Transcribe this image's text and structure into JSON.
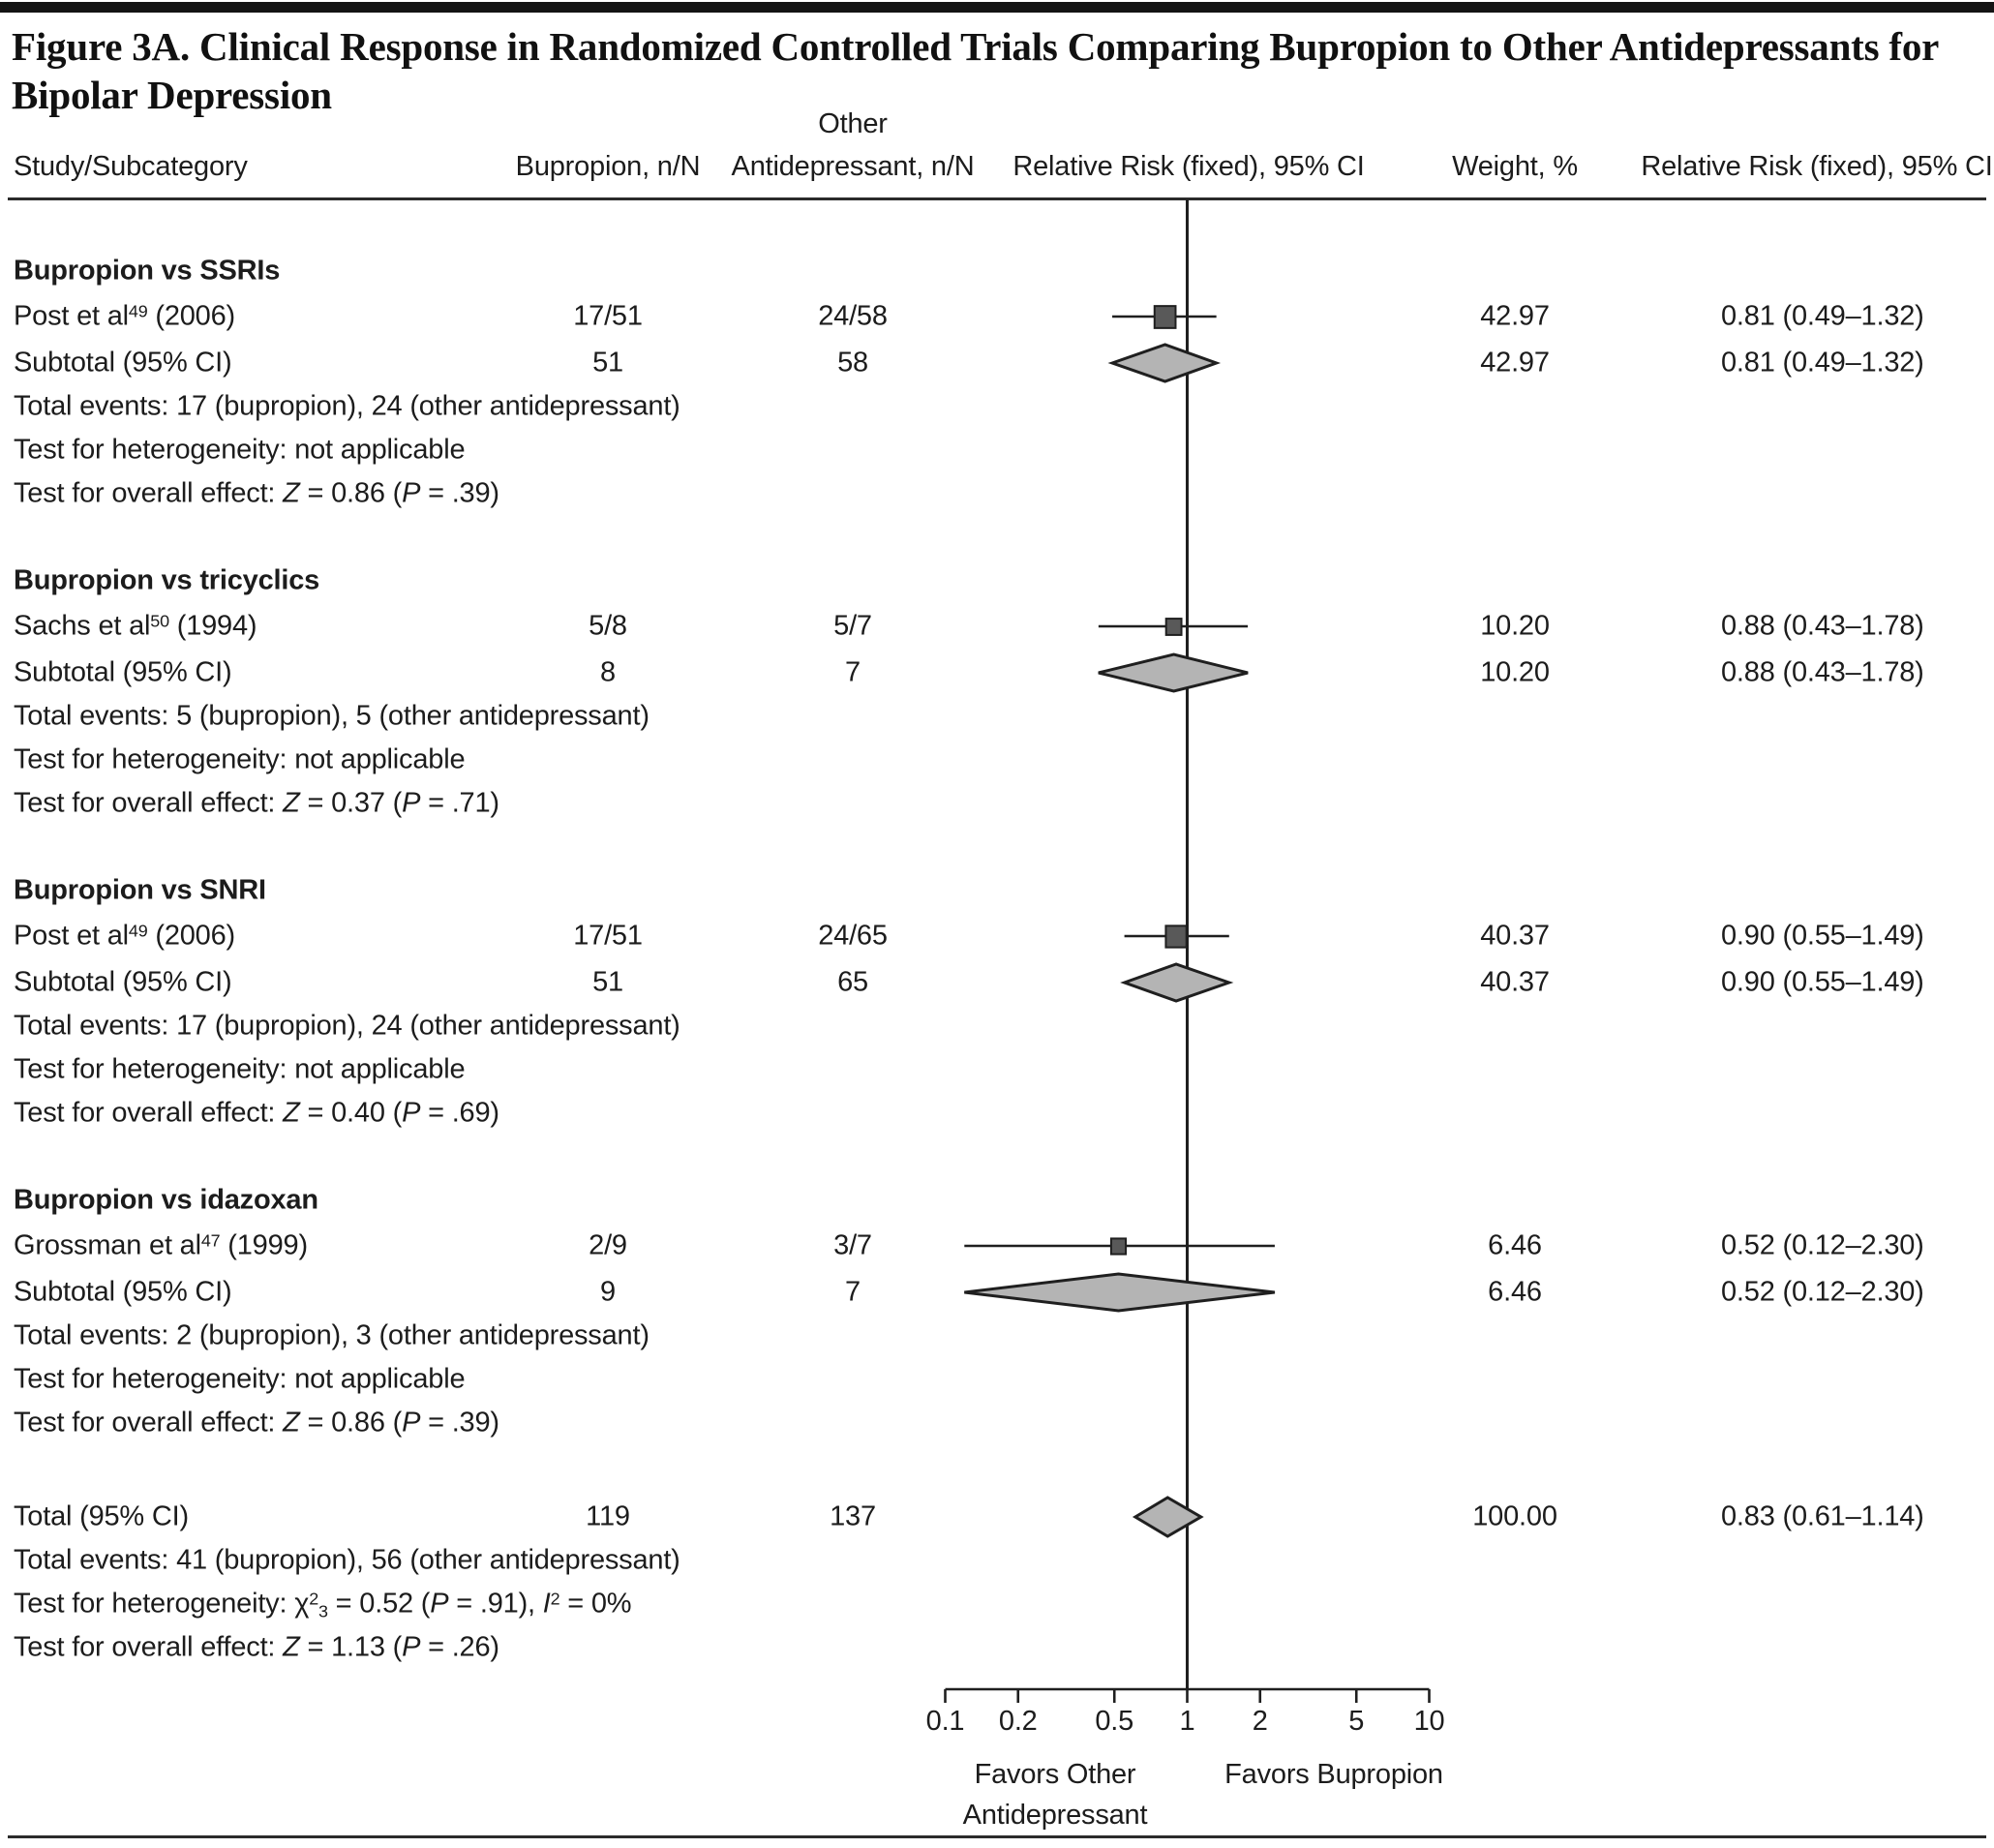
{
  "page": {
    "title_line1": "Figure 3A. Clinical Response in Randomized Controlled Trials Comparing Bupropion to Other Antidepressants for",
    "title_line2": "Bipolar Depression"
  },
  "columns": {
    "study": "Study/Subcategory",
    "bupropion": "Bupropion, n/N",
    "other_line1": "Other",
    "other_line2": "Antidepressant, n/N",
    "plot": "Relative Risk (fixed), 95% CI",
    "weight": "Weight, %",
    "rr": "Relative Risk (fixed), 95% CI"
  },
  "colors": {
    "marker_fill": "#595959",
    "marker_stroke": "#1f1f1f",
    "diamond_fill": "#b4b4b4",
    "diamond_stroke": "#1f1f1f",
    "line": "#1f1f1f"
  },
  "chart_data": {
    "type": "forest",
    "x_axis": {
      "scale": "log10",
      "tick_labels": [
        "0.1",
        "0.2",
        "0.5",
        "1",
        "2",
        "5",
        "10"
      ],
      "tick_values": [
        0.1,
        0.2,
        0.5,
        1,
        2,
        5,
        10
      ],
      "range": [
        0.1,
        10
      ],
      "no_effect_line": 1
    },
    "favors_left": [
      "Favors Other",
      "Antidepressant"
    ],
    "favors_right": "Favors Bupropion",
    "sections": [
      {
        "heading": "Bupropion vs SSRIs",
        "study": {
          "label": [
            {
              "t": "Post et al"
            },
            {
              "t": "49",
              "sup": true
            },
            {
              "t": " (2006)"
            }
          ],
          "bupropion_nN": "17/51",
          "other_nN": "24/58",
          "weight_pct": 42.97,
          "weight_text": "42.97",
          "rr": 0.81,
          "ci_low": 0.49,
          "ci_high": 1.32,
          "rr_text": "0.81 (0.49–1.32)"
        },
        "subtotal": {
          "label": [
            {
              "t": "Subtotal (95% CI)"
            }
          ],
          "bupropion_nN": "51",
          "other_nN": "58",
          "weight_text": "42.97",
          "rr": 0.81,
          "ci_low": 0.49,
          "ci_high": 1.32,
          "rr_text": "0.81 (0.49–1.32)"
        },
        "notes": [
          [
            {
              "t": "Total events: 17 (bupropion), 24 (other antidepressant)"
            }
          ],
          [
            {
              "t": "Test for heterogeneity: not applicable"
            }
          ],
          [
            {
              "t": "Test for overall effect: "
            },
            {
              "t": "Z",
              "i": true
            },
            {
              "t": " = 0.86 ("
            },
            {
              "t": "P",
              "i": true
            },
            {
              "t": " = .39)"
            }
          ]
        ]
      },
      {
        "heading": "Bupropion vs tricyclics",
        "study": {
          "label": [
            {
              "t": "Sachs et al"
            },
            {
              "t": "50",
              "sup": true
            },
            {
              "t": " (1994)"
            }
          ],
          "bupropion_nN": "5/8",
          "other_nN": "5/7",
          "weight_pct": 10.2,
          "weight_text": "10.20",
          "rr": 0.88,
          "ci_low": 0.43,
          "ci_high": 1.78,
          "rr_text": "0.88 (0.43–1.78)"
        },
        "subtotal": {
          "label": [
            {
              "t": "Subtotal (95% CI)"
            }
          ],
          "bupropion_nN": "8",
          "other_nN": "7",
          "weight_text": "10.20",
          "rr": 0.88,
          "ci_low": 0.43,
          "ci_high": 1.78,
          "rr_text": "0.88 (0.43–1.78)"
        },
        "notes": [
          [
            {
              "t": "Total events: 5 (bupropion), 5 (other antidepressant)"
            }
          ],
          [
            {
              "t": "Test for heterogeneity: not applicable"
            }
          ],
          [
            {
              "t": "Test for overall effect: "
            },
            {
              "t": "Z",
              "i": true
            },
            {
              "t": " = 0.37 ("
            },
            {
              "t": "P",
              "i": true
            },
            {
              "t": " = .71)"
            }
          ]
        ]
      },
      {
        "heading": "Bupropion vs SNRI",
        "study": {
          "label": [
            {
              "t": "Post et al"
            },
            {
              "t": "49",
              "sup": true
            },
            {
              "t": " (2006)"
            }
          ],
          "bupropion_nN": "17/51",
          "other_nN": "24/65",
          "weight_pct": 40.37,
          "weight_text": "40.37",
          "rr": 0.9,
          "ci_low": 0.55,
          "ci_high": 1.49,
          "rr_text": "0.90 (0.55–1.49)"
        },
        "subtotal": {
          "label": [
            {
              "t": "Subtotal (95% CI)"
            }
          ],
          "bupropion_nN": "51",
          "other_nN": "65",
          "weight_text": "40.37",
          "rr": 0.9,
          "ci_low": 0.55,
          "ci_high": 1.49,
          "rr_text": "0.90 (0.55–1.49)"
        },
        "notes": [
          [
            {
              "t": "Total events: 17 (bupropion), 24 (other antidepressant)"
            }
          ],
          [
            {
              "t": "Test for heterogeneity: not applicable"
            }
          ],
          [
            {
              "t": "Test for overall effect: "
            },
            {
              "t": "Z",
              "i": true
            },
            {
              "t": " = 0.40 ("
            },
            {
              "t": "P",
              "i": true
            },
            {
              "t": " = .69)"
            }
          ]
        ]
      },
      {
        "heading": "Bupropion vs idazoxan",
        "study": {
          "label": [
            {
              "t": "Grossman et al"
            },
            {
              "t": "47",
              "sup": true
            },
            {
              "t": " (1999)"
            }
          ],
          "bupropion_nN": "2/9",
          "other_nN": "3/7",
          "weight_pct": 6.46,
          "weight_text": "6.46",
          "rr": 0.52,
          "ci_low": 0.12,
          "ci_high": 2.3,
          "rr_text": "0.52 (0.12–2.30)"
        },
        "subtotal": {
          "label": [
            {
              "t": "Subtotal (95% CI)"
            }
          ],
          "bupropion_nN": "9",
          "other_nN": "7",
          "weight_text": "6.46",
          "rr": 0.52,
          "ci_low": 0.12,
          "ci_high": 2.3,
          "rr_text": "0.52 (0.12–2.30)"
        },
        "notes": [
          [
            {
              "t": "Total events: 2 (bupropion), 3 (other antidepressant)"
            }
          ],
          [
            {
              "t": "Test for heterogeneity: not applicable"
            }
          ],
          [
            {
              "t": "Test for overall effect: "
            },
            {
              "t": "Z",
              "i": true
            },
            {
              "t": " = 0.86 ("
            },
            {
              "t": "P",
              "i": true
            },
            {
              "t": " = .39)"
            }
          ]
        ]
      }
    ],
    "total": {
      "label": [
        {
          "t": "Total (95% CI)"
        }
      ],
      "bupropion_nN": "119",
      "other_nN": "137",
      "weight_text": "100.00",
      "rr": 0.83,
      "ci_low": 0.61,
      "ci_high": 1.14,
      "rr_text": "0.83 (0.61–1.14)",
      "notes": [
        [
          {
            "t": "Total events: 41 (bupropion), 56 (other antidepressant)"
          }
        ],
        [
          {
            "t": "Test for heterogeneity: "
          },
          {
            "t": "χ"
          },
          {
            "t": "2",
            "sup": true
          },
          {
            "t": "3",
            "sub": true
          },
          {
            "t": " = 0.52 ("
          },
          {
            "t": "P",
            "i": true
          },
          {
            "t": " = .91), "
          },
          {
            "t": "I",
            "i": true
          },
          {
            "t": "2",
            "sup": true
          },
          {
            "t": " = 0%"
          }
        ],
        [
          {
            "t": "Test for overall effect: "
          },
          {
            "t": "Z",
            "i": true
          },
          {
            "t": " = 1.13 ("
          },
          {
            "t": "P",
            "i": true
          },
          {
            "t": " = .26)"
          }
        ]
      ]
    }
  }
}
